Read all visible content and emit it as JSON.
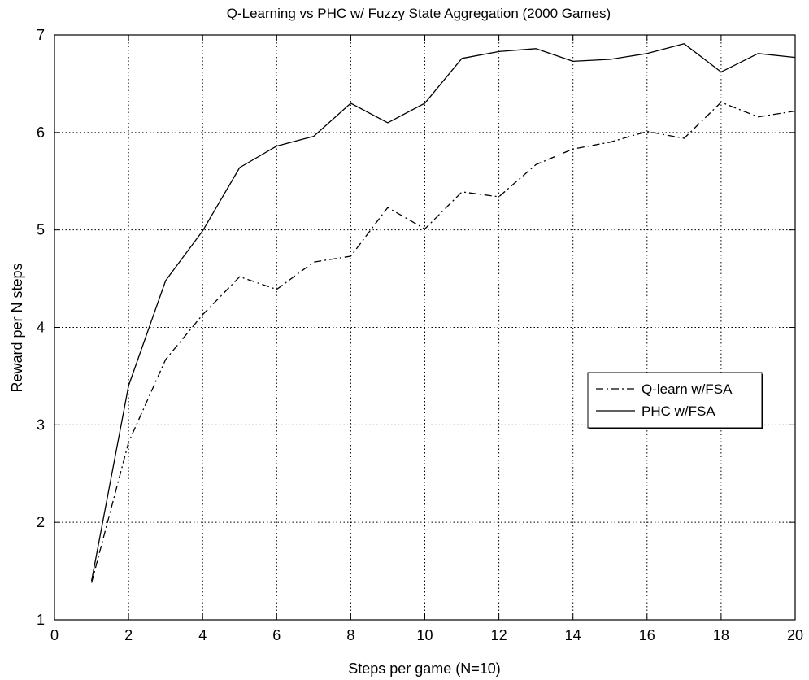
{
  "chart_data": {
    "type": "line",
    "title": "Q-Learning vs PHC w/ Fuzzy State Aggregation (2000 Games)",
    "xlabel": "Steps per game (N=10)",
    "ylabel": "Reward per N steps",
    "xlim": [
      0,
      20
    ],
    "ylim": [
      1,
      7
    ],
    "xticks": [
      0,
      2,
      4,
      6,
      8,
      10,
      12,
      14,
      16,
      18,
      20
    ],
    "yticks": [
      1,
      2,
      3,
      4,
      5,
      6,
      7
    ],
    "grid": true,
    "legend_position": "center-right",
    "x": [
      1,
      2,
      3,
      4,
      5,
      6,
      7,
      8,
      9,
      10,
      11,
      12,
      13,
      14,
      15,
      16,
      17,
      18,
      19,
      20
    ],
    "series": [
      {
        "name": "Q-learn w/FSA",
        "style": "dash-dot",
        "color": "#000000",
        "values": [
          1.38,
          2.82,
          3.67,
          4.13,
          4.52,
          4.39,
          4.67,
          4.73,
          5.23,
          5.01,
          5.39,
          5.34,
          5.67,
          5.83,
          5.9,
          6.01,
          5.94,
          6.31,
          6.16,
          6.22
        ]
      },
      {
        "name": "PHC w/FSA",
        "style": "solid",
        "color": "#000000",
        "values": [
          1.4,
          3.4,
          4.48,
          4.99,
          5.64,
          5.86,
          5.96,
          6.3,
          6.1,
          6.3,
          6.76,
          6.83,
          6.86,
          6.73,
          6.75,
          6.81,
          6.91,
          6.62,
          6.81,
          6.77
        ]
      }
    ]
  }
}
